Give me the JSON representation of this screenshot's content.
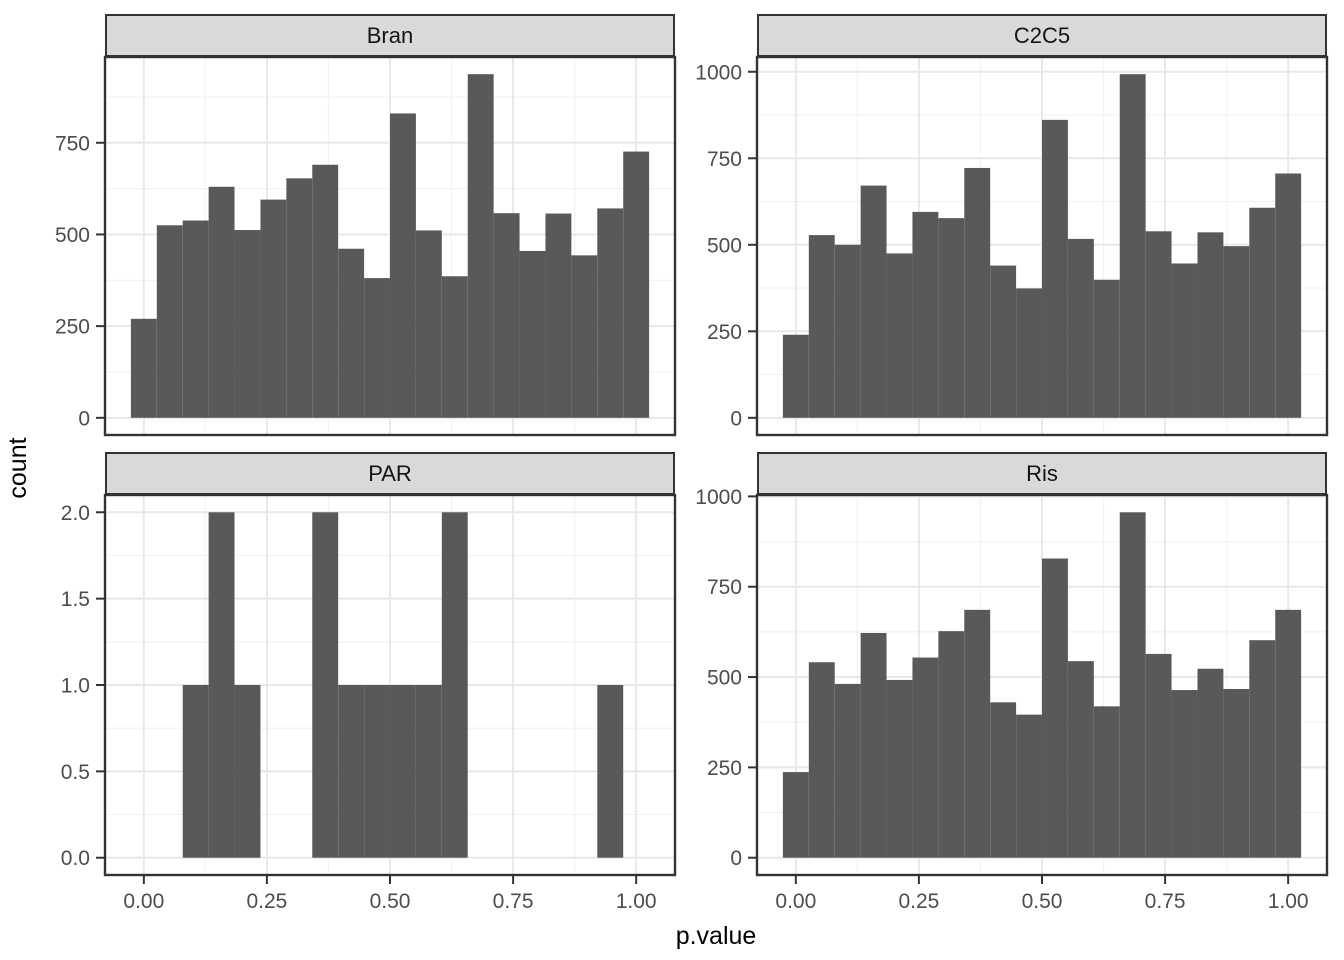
{
  "chart_data": {
    "type": "histogram",
    "title": "",
    "xlabel": "p.value",
    "ylabel": "count",
    "legend": "none",
    "grid": "major and minor, light gray on white panels",
    "facet_layout": "2x2 grid, shared x axis, free y axis",
    "x_range": [
      0,
      1
    ],
    "bins": 20,
    "bin_width": 0.0526,
    "bin_centers": [
      0.0,
      0.0526,
      0.1053,
      0.1579,
      0.2105,
      0.2632,
      0.3158,
      0.3684,
      0.4211,
      0.4737,
      0.5263,
      0.5789,
      0.6316,
      0.6842,
      0.7368,
      0.7895,
      0.8421,
      0.8947,
      0.9474,
      1.0
    ],
    "x_tick_values": [
      0,
      0.25,
      0.5,
      0.75,
      1
    ],
    "x_tick_labels": [
      "0.00",
      "0.25",
      "0.50",
      "0.75",
      "1.00"
    ],
    "x_minor_tick_values": [
      0.125,
      0.375,
      0.625,
      0.875
    ],
    "facets": [
      {
        "label": "Bran",
        "counts": [
          270,
          525,
          538,
          630,
          512,
          595,
          653,
          690,
          461,
          381,
          830,
          511,
          386,
          937,
          558,
          455,
          557,
          443,
          571,
          726
        ],
        "y_tick_values": [
          0,
          250,
          500,
          750
        ],
        "y_tick_labels": [
          "0",
          "250",
          "500",
          "750"
        ]
      },
      {
        "label": "C2C5",
        "counts": [
          240,
          528,
          500,
          671,
          475,
          595,
          577,
          722,
          440,
          374,
          861,
          517,
          399,
          993,
          539,
          446,
          536,
          496,
          607,
          706
        ],
        "y_tick_values": [
          0,
          250,
          500,
          750,
          1000
        ],
        "y_tick_labels": [
          "0",
          "250",
          "500",
          "750",
          "1000"
        ]
      },
      {
        "label": "PAR",
        "counts": [
          0,
          0,
          1,
          2,
          1,
          0,
          0,
          2,
          1,
          1,
          1,
          1,
          2,
          0,
          0,
          0,
          0,
          0,
          1,
          0
        ],
        "y_tick_values": [
          0,
          0.5,
          1,
          1.5,
          2
        ],
        "y_tick_labels": [
          "0.0",
          "0.5",
          "1.0",
          "1.5",
          "2.0"
        ]
      },
      {
        "label": "Ris",
        "counts": [
          237,
          541,
          481,
          622,
          492,
          554,
          627,
          686,
          430,
          396,
          828,
          544,
          419,
          956,
          564,
          464,
          523,
          467,
          602,
          686
        ],
        "y_tick_values": [
          0,
          250,
          500,
          750,
          1000
        ],
        "y_tick_labels": [
          "0",
          "250",
          "500",
          "750",
          "1000"
        ]
      }
    ],
    "colors": {
      "bar_fill": "#595959",
      "panel_bg": "#FFFFFF",
      "grid_major": "#E8E8E8",
      "grid_minor": "#F2F2F2",
      "panel_border": "#333333",
      "strip_bg": "#D9D9D9",
      "strip_border": "#333333",
      "tick_mark": "#333333",
      "tick_label": "#4D4D4D",
      "axis_title": "#000000"
    }
  }
}
